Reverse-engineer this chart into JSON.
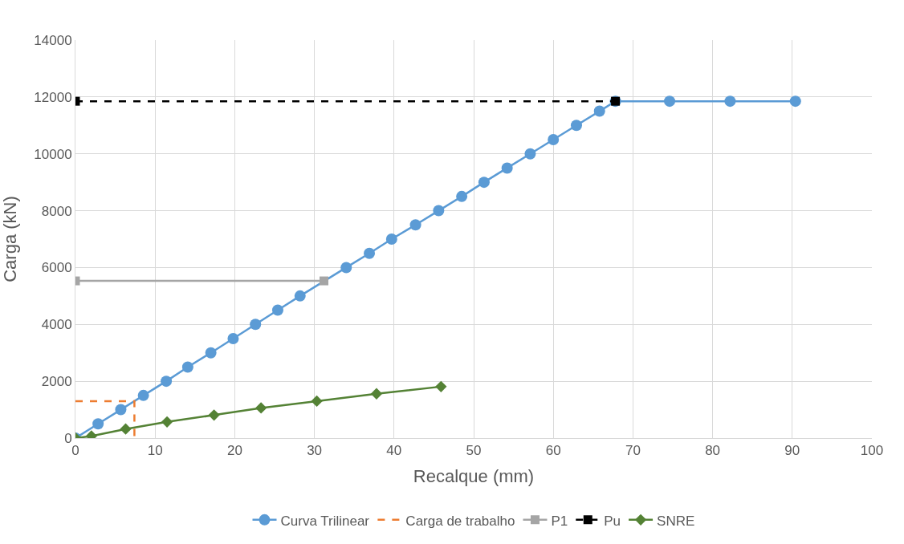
{
  "chart_data": {
    "type": "line",
    "xlabel": "Recalque (mm)",
    "ylabel": "Carga (kN)",
    "xlim": [
      0,
      100
    ],
    "xticks": [
      0,
      10,
      20,
      30,
      40,
      50,
      60,
      70,
      80,
      90,
      100
    ],
    "ylim": [
      0,
      14000
    ],
    "yticks": [
      0,
      2000,
      4000,
      6000,
      8000,
      10000,
      12000,
      14000
    ],
    "grid": true,
    "legend": "bottom",
    "series": [
      {
        "name": "Curva Trilinear",
        "color": "#5b9bd5",
        "marker": "circle",
        "line_style": "solid",
        "x": [
          0,
          2.84,
          5.69,
          8.53,
          11.4,
          14.1,
          17.0,
          19.8,
          22.6,
          25.4,
          28.2,
          34.0,
          36.9,
          39.7,
          42.7,
          45.6,
          48.5,
          51.3,
          54.2,
          57.1,
          60.0,
          62.9,
          65.8,
          67.8,
          74.6,
          82.2,
          90.4
        ],
        "values": [
          0,
          500,
          1000,
          1500,
          2000,
          2500,
          3000,
          3500,
          4000,
          4500,
          5000,
          6000,
          6500,
          7000,
          7500,
          8000,
          8500,
          9000,
          9500,
          10000,
          10500,
          11000,
          11500,
          11850,
          11850,
          11850,
          11850
        ]
      },
      {
        "name": "Carga de trabalho",
        "color": "#ed7d31",
        "marker": "none",
        "line_style": "dashed",
        "x": [
          0,
          7.4,
          7.4
        ],
        "values": [
          1300,
          1300,
          0
        ]
      },
      {
        "name": "P1",
        "color": "#a5a5a5",
        "marker": "square",
        "line_style": "solid",
        "x": [
          0,
          31.2
        ],
        "values": [
          5530,
          5530
        ]
      },
      {
        "name": "Pu",
        "color": "#000000",
        "marker": "square",
        "line_style": "dashed",
        "x": [
          0,
          67.8
        ],
        "values": [
          11850,
          11850
        ]
      },
      {
        "name": "SNRE",
        "color": "#548235",
        "marker": "diamond",
        "line_style": "solid",
        "x": [
          0,
          2.0,
          6.3,
          11.5,
          17.4,
          23.3,
          30.3,
          37.8,
          45.9
        ],
        "values": [
          0,
          70,
          320,
          570,
          810,
          1060,
          1300,
          1560,
          1810
        ]
      }
    ]
  }
}
